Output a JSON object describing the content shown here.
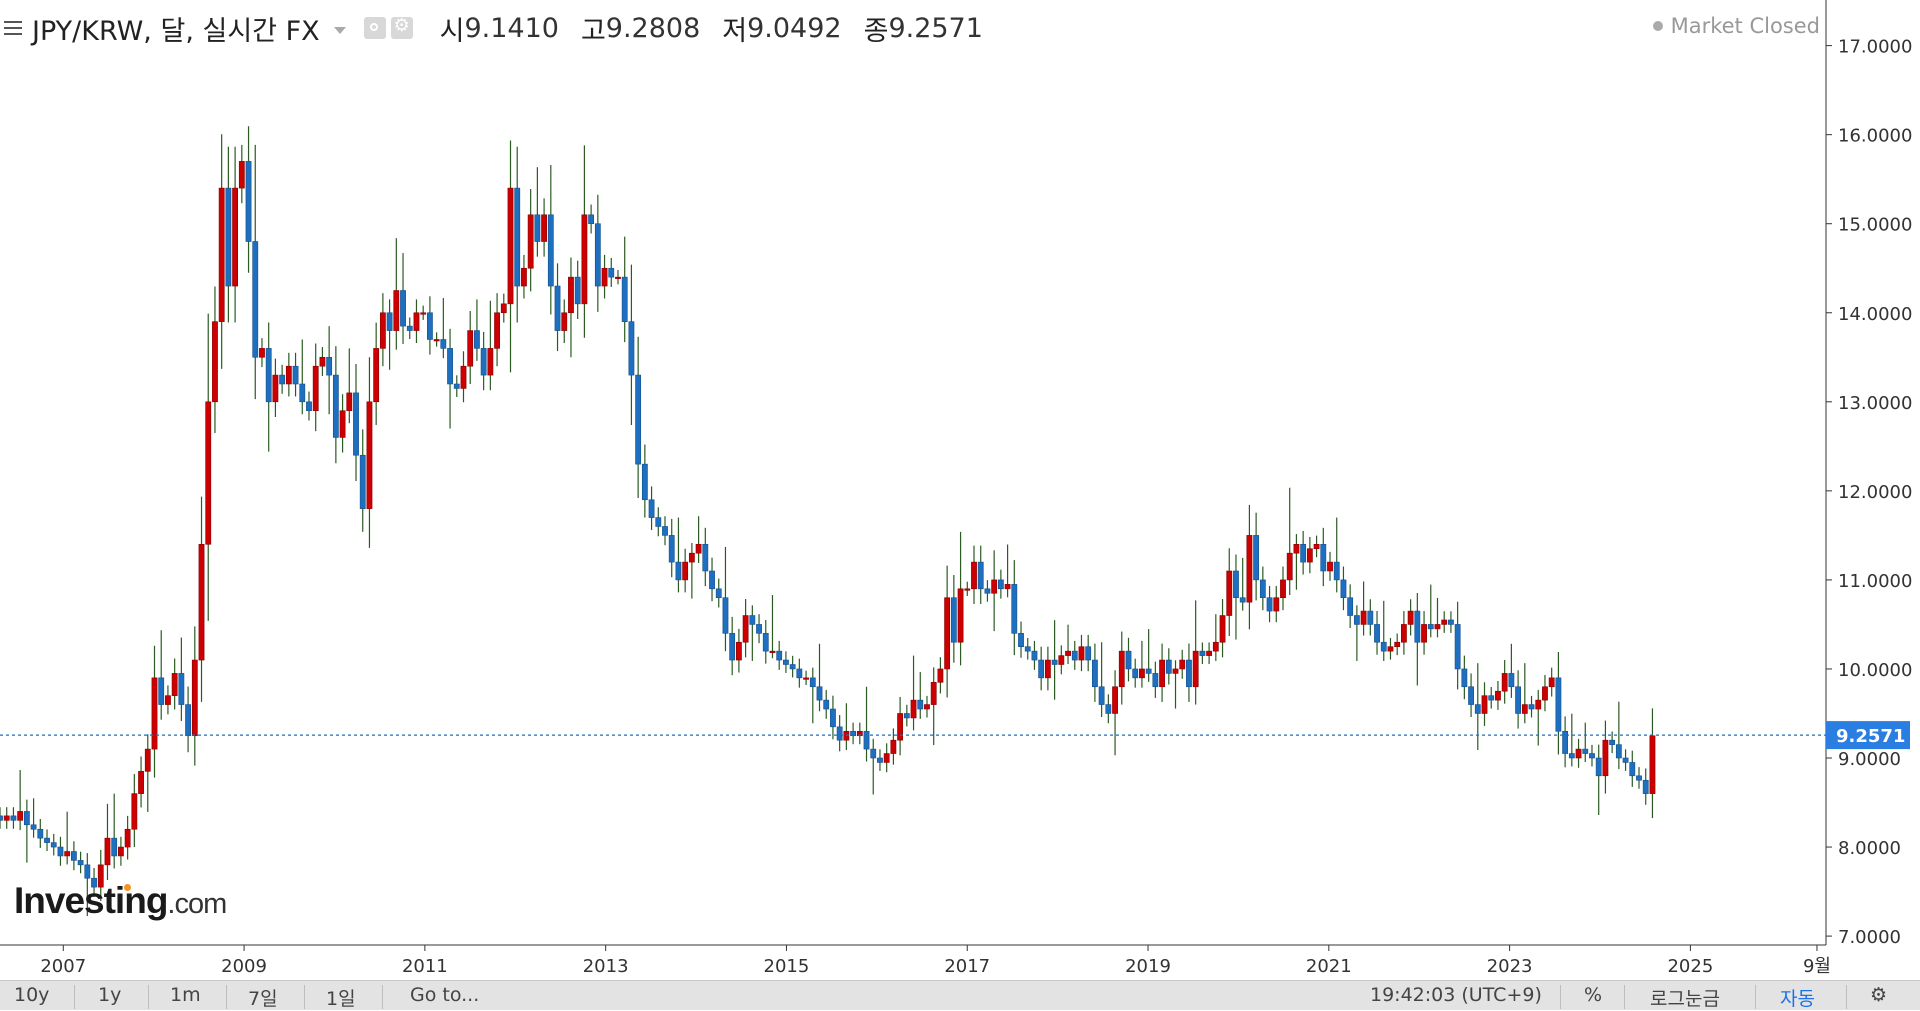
{
  "header": {
    "symbol": "JPY/KRW, 달, 실시간 FX",
    "open_label": "시",
    "open_value": "9.1410",
    "high_label": "고",
    "high_value": "9.2808",
    "low_label": "저",
    "low_value": "9.0492",
    "close_label": "종",
    "close_value": "9.2571",
    "market_status": "Market Closed"
  },
  "logo": {
    "main": "Investing",
    "suffix": ".com"
  },
  "colors": {
    "up": "#cc0000",
    "down": "#1e6fbf",
    "wick": "#2b5b22",
    "price_line": "#1e6fbf",
    "price_label_bg": "#2a7de1",
    "axis": "#333333"
  },
  "chart_data": {
    "type": "candlestick",
    "title": "",
    "xlabel": "",
    "ylabel": "",
    "ylim": [
      6.9,
      17.4
    ],
    "xlim": [
      2006.3,
      2026.5
    ],
    "y_ticks": [
      "7.0000",
      "8.0000",
      "9.0000",
      "10.0000",
      "11.0000",
      "12.0000",
      "13.0000",
      "14.0000",
      "15.0000",
      "16.0000",
      "17.0000"
    ],
    "x_ticks": [
      "2007",
      "2009",
      "2011",
      "2013",
      "2015",
      "2017",
      "2019",
      "2021",
      "2023",
      "2025",
      "9월"
    ],
    "last_price_label": "9.2571",
    "last_price": 9.2571,
    "grid": false,
    "closes": [
      8.3,
      8.35,
      8.3,
      8.4,
      8.25,
      8.2,
      8.1,
      8.05,
      8.0,
      7.9,
      7.95,
      7.85,
      7.8,
      7.65,
      7.55,
      7.8,
      8.1,
      7.9,
      8.0,
      8.2,
      8.6,
      8.85,
      9.1,
      9.9,
      9.6,
      9.7,
      9.95,
      9.6,
      9.25,
      10.1,
      11.4,
      13.0,
      13.9,
      15.4,
      14.3,
      15.4,
      15.7,
      14.8,
      13.5,
      13.6,
      13.0,
      13.3,
      13.2,
      13.4,
      13.2,
      13.0,
      12.9,
      13.4,
      13.5,
      13.3,
      12.6,
      12.9,
      13.1,
      12.4,
      11.8,
      13.0,
      13.6,
      14.0,
      13.8,
      14.25,
      13.85,
      13.8,
      14.0,
      14.0,
      13.7,
      13.7,
      13.6,
      13.2,
      13.15,
      13.4,
      13.8,
      13.6,
      13.3,
      13.6,
      14.0,
      14.1,
      15.4,
      14.3,
      14.5,
      15.1,
      14.8,
      15.1,
      14.3,
      13.8,
      14.0,
      14.4,
      14.1,
      15.1,
      15.0,
      14.3,
      14.5,
      14.4,
      14.4,
      13.9,
      13.3,
      12.3,
      11.9,
      11.7,
      11.6,
      11.5,
      11.2,
      11.0,
      11.2,
      11.3,
      11.4,
      11.1,
      10.9,
      10.8,
      10.4,
      10.1,
      10.3,
      10.6,
      10.5,
      10.4,
      10.2,
      10.2,
      10.1,
      10.05,
      10.0,
      9.9,
      9.9,
      9.8,
      9.65,
      9.55,
      9.35,
      9.2,
      9.3,
      9.25,
      9.3,
      9.1,
      9.0,
      8.95,
      9.05,
      9.2,
      9.5,
      9.45,
      9.65,
      9.55,
      9.6,
      9.85,
      10.0,
      10.8,
      10.3,
      10.9,
      10.9,
      11.2,
      10.9,
      10.85,
      11.0,
      10.9,
      10.95,
      10.4,
      10.25,
      10.2,
      10.1,
      9.9,
      10.1,
      10.05,
      10.15,
      10.2,
      10.1,
      10.25,
      10.1,
      9.8,
      9.6,
      9.5,
      9.8,
      10.2,
      10.0,
      9.9,
      10.0,
      9.95,
      9.8,
      10.1,
      9.95,
      10.0,
      10.1,
      9.8,
      10.2,
      10.15,
      10.2,
      10.3,
      10.6,
      11.1,
      10.8,
      10.75,
      11.5,
      11.0,
      10.8,
      10.65,
      10.8,
      11.0,
      11.3,
      11.4,
      11.2,
      11.35,
      11.4,
      11.1,
      11.2,
      11.0,
      10.8,
      10.6,
      10.5,
      10.65,
      10.5,
      10.3,
      10.2,
      10.25,
      10.3,
      10.5,
      10.65,
      10.3,
      10.5,
      10.45,
      10.5,
      10.55,
      10.5,
      10.0,
      9.8,
      9.6,
      9.5,
      9.7,
      9.65,
      9.75,
      9.95,
      9.8,
      9.5,
      9.6,
      9.55,
      9.65,
      9.8,
      9.9,
      9.3,
      9.05,
      9.0,
      9.1,
      9.05,
      9.0,
      8.8,
      9.2,
      9.15,
      9.0,
      8.95,
      8.8,
      8.75,
      8.6,
      9.25
    ]
  }
}
